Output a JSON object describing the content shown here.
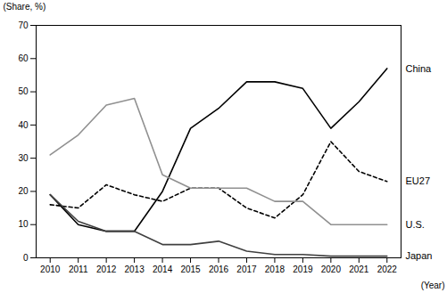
{
  "chart_data": {
    "type": "line",
    "xlabel": "(Year)",
    "ylabel": "(Share, %)",
    "x": [
      2010,
      2011,
      2012,
      2013,
      2014,
      2015,
      2016,
      2017,
      2018,
      2019,
      2020,
      2021,
      2022
    ],
    "series": [
      {
        "name": "China",
        "color": "#000000",
        "line_style": "solid",
        "values": [
          19,
          10,
          8,
          8,
          20,
          39,
          45,
          53,
          53,
          51,
          39,
          47,
          57
        ]
      },
      {
        "name": "EU27",
        "color": "#000000",
        "line_style": "dashed",
        "values": [
          16,
          15,
          22,
          19,
          17,
          21,
          21,
          15,
          12,
          19,
          35,
          26,
          23
        ]
      },
      {
        "name": "U.S.",
        "color": "#909090",
        "line_style": "solid",
        "values": [
          31,
          37,
          46,
          48,
          25,
          21,
          21,
          21,
          17,
          17,
          10,
          10,
          10
        ]
      },
      {
        "name": "Japan",
        "color": "#404040",
        "line_style": "solid",
        "values": [
          19,
          11,
          8,
          8,
          4,
          4,
          5,
          2,
          1,
          1,
          0.5,
          0.5,
          0.5
        ]
      }
    ],
    "xlim": [
      2009.5,
      2022.5
    ],
    "xticks": [
      2010,
      2011,
      2012,
      2013,
      2014,
      2015,
      2016,
      2017,
      2018,
      2019,
      2020,
      2021,
      2022
    ],
    "ylim": [
      0,
      70
    ],
    "yticks": [
      0,
      10,
      20,
      30,
      40,
      50,
      60,
      70
    ],
    "grid": false
  }
}
